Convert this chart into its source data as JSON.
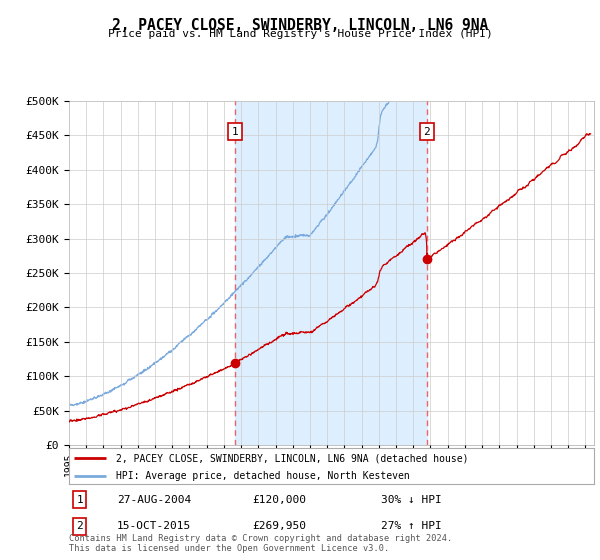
{
  "title": "2, PACEY CLOSE, SWINDERBY, LINCOLN, LN6 9NA",
  "subtitle": "Price paid vs. HM Land Registry's House Price Index (HPI)",
  "ylabel_ticks": [
    "£0",
    "£50K",
    "£100K",
    "£150K",
    "£200K",
    "£250K",
    "£300K",
    "£350K",
    "£400K",
    "£450K",
    "£500K"
  ],
  "ylim": [
    0,
    500000
  ],
  "xlim_start": 1995.0,
  "xlim_end": 2025.5,
  "sale1_x": 2004.65,
  "sale1_y": 120000,
  "sale1_label": "1",
  "sale2_x": 2015.79,
  "sale2_y": 269950,
  "sale2_label": "2",
  "property_color": "#cc0000",
  "hpi_color": "#7aaadd",
  "shade_color": "#ddeeff",
  "legend_property": "2, PACEY CLOSE, SWINDERBY, LINCOLN, LN6 9NA (detached house)",
  "legend_hpi": "HPI: Average price, detached house, North Kesteven",
  "table_row1_num": "1",
  "table_row1_date": "27-AUG-2004",
  "table_row1_price": "£120,000",
  "table_row1_hpi": "30% ↓ HPI",
  "table_row2_num": "2",
  "table_row2_date": "15-OCT-2015",
  "table_row2_price": "£269,950",
  "table_row2_hpi": "27% ↑ HPI",
  "footnote1": "Contains HM Land Registry data © Crown copyright and database right 2024.",
  "footnote2": "This data is licensed under the Open Government Licence v3.0.",
  "background_color": "#ffffff",
  "plot_bg_color": "#ffffff",
  "grid_color": "#cccccc"
}
